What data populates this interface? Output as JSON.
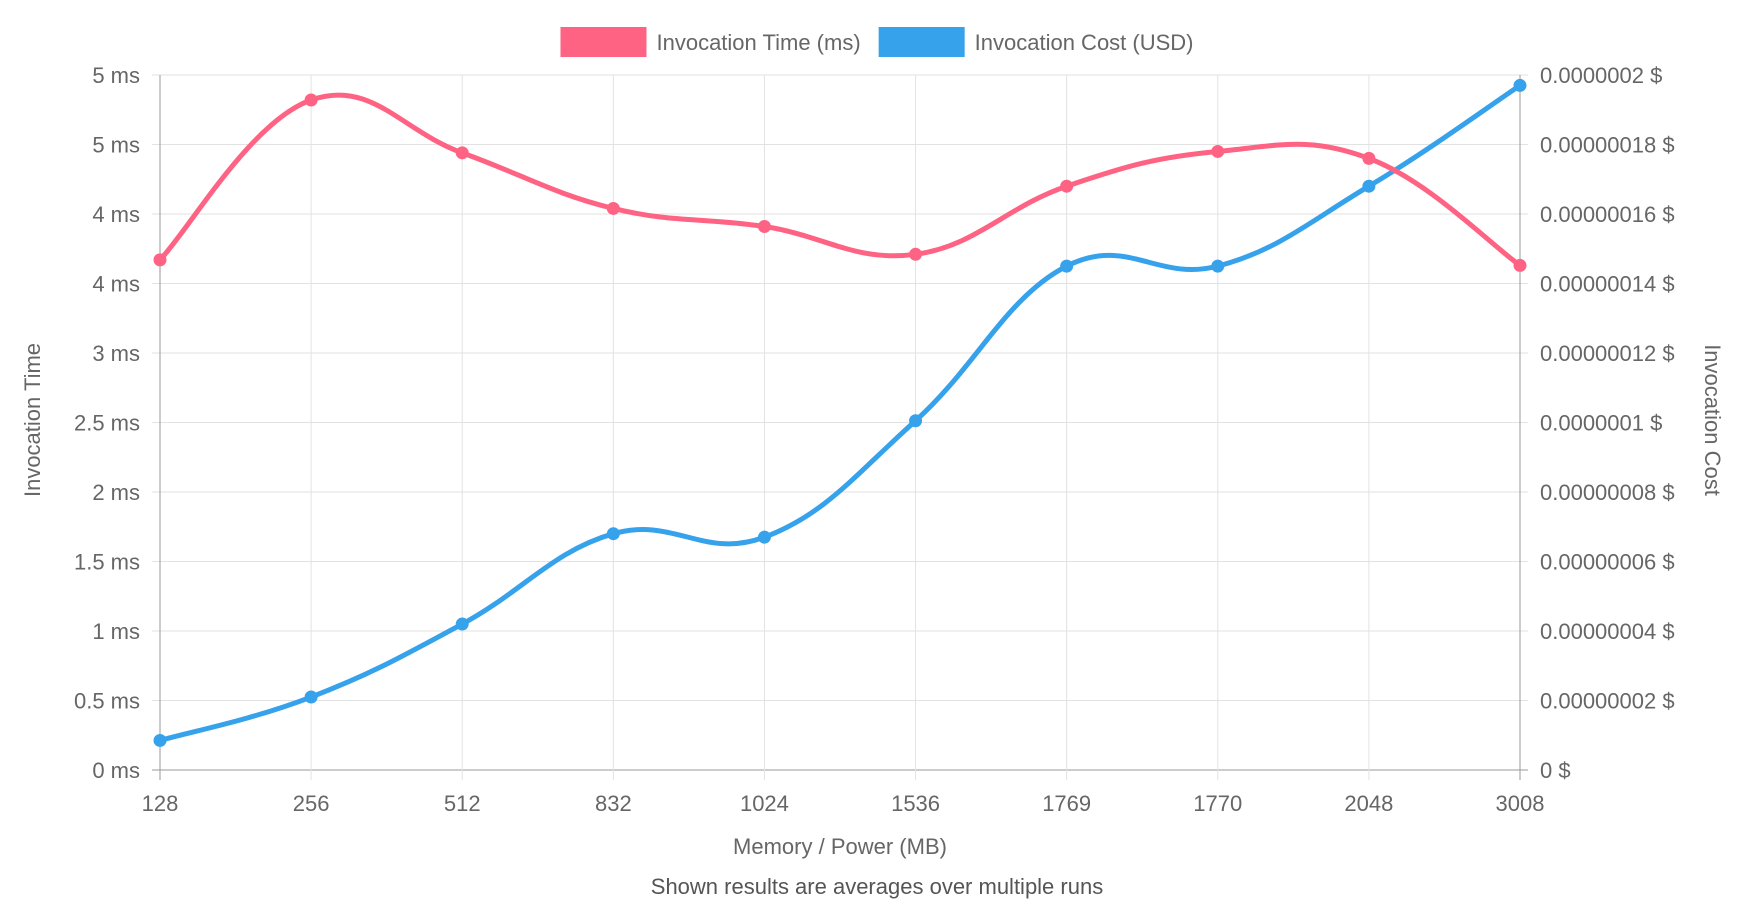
{
  "chart_data": {
    "type": "line",
    "categories": [
      "128",
      "256",
      "512",
      "832",
      "1024",
      "1536",
      "1769",
      "1770",
      "2048",
      "3008"
    ],
    "xlabel": "Memory / Power (MB)",
    "ylabel_left": "Invocation Time",
    "ylabel_right": "Invocation Cost",
    "footnote": "Shown results are averages over multiple runs",
    "legend_position": "top",
    "grid": true,
    "y_left": {
      "min": 0,
      "max": 5,
      "ticks": [
        {
          "value": 0,
          "label": "0 ms"
        },
        {
          "value": 0.5,
          "label": "0.5 ms"
        },
        {
          "value": 1,
          "label": "1 ms"
        },
        {
          "value": 1.5,
          "label": "1.5 ms"
        },
        {
          "value": 2,
          "label": "2 ms"
        },
        {
          "value": 2.5,
          "label": "2.5 ms"
        },
        {
          "value": 3,
          "label": "3 ms"
        },
        {
          "value": 3.5,
          "label": "4 ms"
        },
        {
          "value": 4,
          "label": "4 ms"
        },
        {
          "value": 4.5,
          "label": "5 ms"
        },
        {
          "value": 5,
          "label": "5 ms"
        }
      ]
    },
    "y_right": {
      "min": 0,
      "max": 2e-07,
      "ticks": [
        {
          "value": 0,
          "label": "0 $"
        },
        {
          "value": 2e-08,
          "label": "0.00000002 $"
        },
        {
          "value": 4e-08,
          "label": "0.00000004 $"
        },
        {
          "value": 6e-08,
          "label": "0.00000006 $"
        },
        {
          "value": 8e-08,
          "label": "0.00000008 $"
        },
        {
          "value": 1e-07,
          "label": "0.0000001 $"
        },
        {
          "value": 1.2e-07,
          "label": "0.00000012 $"
        },
        {
          "value": 1.4e-07,
          "label": "0.00000014 $"
        },
        {
          "value": 1.6e-07,
          "label": "0.00000016 $"
        },
        {
          "value": 1.8e-07,
          "label": "0.00000018 $"
        },
        {
          "value": 2e-07,
          "label": "0.0000002 $"
        }
      ]
    },
    "series": [
      {
        "name": "Invocation Time (ms)",
        "axis": "left",
        "color": "#ff6384",
        "values": [
          3.67,
          4.82,
          4.44,
          4.04,
          3.91,
          3.71,
          4.2,
          4.45,
          4.4,
          3.63
        ]
      },
      {
        "name": "Invocation Cost (USD)",
        "axis": "right",
        "color": "#36a2eb",
        "values": [
          8.5e-09,
          2.1e-08,
          4.2e-08,
          6.8e-08,
          6.7e-08,
          1.005e-07,
          1.45e-07,
          1.45e-07,
          1.68e-07,
          1.97e-07
        ]
      }
    ]
  }
}
